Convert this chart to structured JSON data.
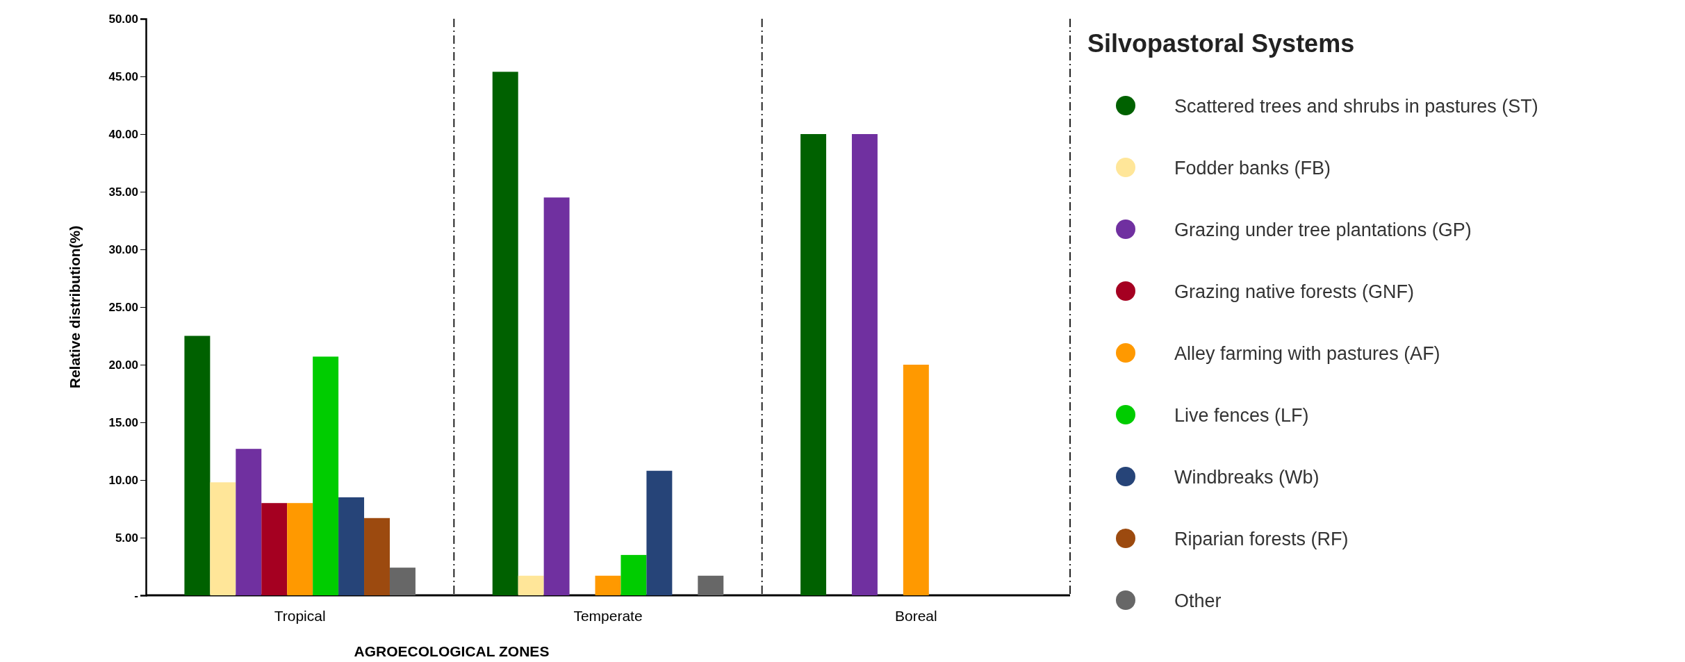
{
  "chart_data": {
    "type": "bar",
    "xlabel": "AGROECOLOGICAL ZONES",
    "ylabel": "Relative distribution(%)",
    "legend_title": "Silvopastoral Systems",
    "legend": "right",
    "categories": [
      "Tropical",
      "Temperate",
      "Boreal"
    ],
    "ylim": [
      0,
      50
    ],
    "yticks": [
      {
        "value": 0,
        "label": "-"
      },
      {
        "value": 5,
        "label": "5.00"
      },
      {
        "value": 10,
        "label": "10.00"
      },
      {
        "value": 15,
        "label": "15.00"
      },
      {
        "value": 20,
        "label": "20.00"
      },
      {
        "value": 25,
        "label": "25.00"
      },
      {
        "value": 30,
        "label": "30.00"
      },
      {
        "value": 35,
        "label": "35.00"
      },
      {
        "value": 40,
        "label": "40.00"
      },
      {
        "value": 45,
        "label": "45.00"
      },
      {
        "value": 50,
        "label": "50.00"
      }
    ],
    "series": [
      {
        "name": "Scattered trees and shrubs in pastures (ST)",
        "color": "#006100",
        "values": [
          22.5,
          45.4,
          40.0
        ]
      },
      {
        "name": "Fodder banks (FB)",
        "color": "#ffe699",
        "values": [
          9.8,
          1.7,
          0
        ]
      },
      {
        "name": "Grazing under tree plantations (GP)",
        "color": "#7030a0",
        "values": [
          12.7,
          34.5,
          40.0
        ]
      },
      {
        "name": "Grazing native forests (GNF)",
        "color": "#a50021",
        "values": [
          8.0,
          0,
          0
        ]
      },
      {
        "name": "Alley farming with pastures (AF)",
        "color": "#ff9900",
        "values": [
          8.0,
          1.7,
          20.0
        ]
      },
      {
        "name": "Live fences (LF)",
        "color": "#00cc00",
        "values": [
          20.7,
          3.5,
          0
        ]
      },
      {
        "name": "Windbreaks (Wb)",
        "color": "#264478",
        "values": [
          8.5,
          10.8,
          0
        ]
      },
      {
        "name": "Riparian forests (RF)",
        "color": "#9c4a0f",
        "values": [
          6.7,
          0,
          0
        ]
      },
      {
        "name": "Other",
        "color": "#676767",
        "values": [
          2.4,
          1.7,
          0
        ]
      }
    ]
  }
}
